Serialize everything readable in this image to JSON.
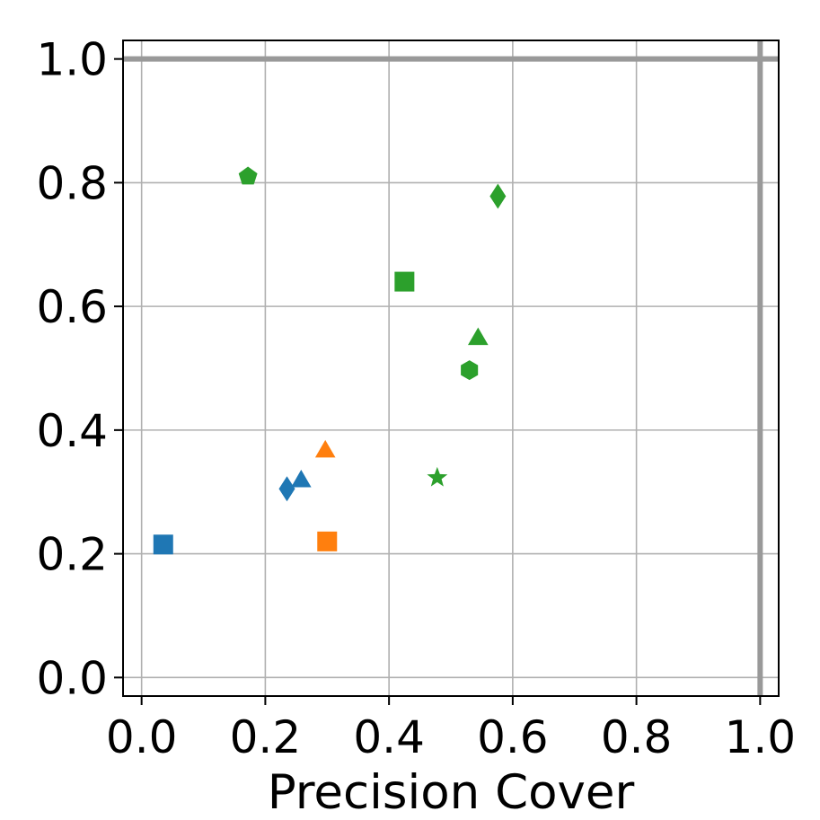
{
  "chart_data": {
    "type": "scatter",
    "title": "",
    "xlabel": "Precision Cover",
    "ylabel": "",
    "xlim": [
      -0.03,
      1.03
    ],
    "ylim": [
      -0.03,
      1.03
    ],
    "grid": true,
    "x_ticks": [
      0.0,
      0.2,
      0.4,
      0.6,
      0.8,
      1.0
    ],
    "y_ticks": [
      0.0,
      0.2,
      0.4,
      0.6,
      0.8,
      1.0
    ],
    "x_tick_labels": [
      "0.0",
      "0.2",
      "0.4",
      "0.6",
      "0.8",
      "1.0"
    ],
    "y_tick_labels": [
      "0.0",
      "0.2",
      "0.4",
      "0.6",
      "0.8",
      "1.0"
    ],
    "reference_lines": [
      {
        "orientation": "horizontal",
        "value": 1.0,
        "color": "#999999"
      },
      {
        "orientation": "vertical",
        "value": 1.0,
        "color": "#999999"
      }
    ],
    "series": [
      {
        "color": "#1f77b4",
        "points": [
          {
            "x": 0.035,
            "y": 0.215,
            "marker": "square"
          },
          {
            "x": 0.235,
            "y": 0.305,
            "marker": "diamond"
          },
          {
            "x": 0.258,
            "y": 0.32,
            "marker": "triangle"
          }
        ]
      },
      {
        "color": "#ff7f0e",
        "points": [
          {
            "x": 0.297,
            "y": 0.368,
            "marker": "triangle"
          },
          {
            "x": 0.3,
            "y": 0.22,
            "marker": "square"
          }
        ]
      },
      {
        "color": "#2ca02c",
        "points": [
          {
            "x": 0.172,
            "y": 0.81,
            "marker": "pentagon"
          },
          {
            "x": 0.576,
            "y": 0.778,
            "marker": "diamond"
          },
          {
            "x": 0.425,
            "y": 0.64,
            "marker": "square"
          },
          {
            "x": 0.544,
            "y": 0.55,
            "marker": "triangle"
          },
          {
            "x": 0.53,
            "y": 0.497,
            "marker": "hexagon"
          },
          {
            "x": 0.478,
            "y": 0.323,
            "marker": "star"
          }
        ]
      }
    ]
  }
}
